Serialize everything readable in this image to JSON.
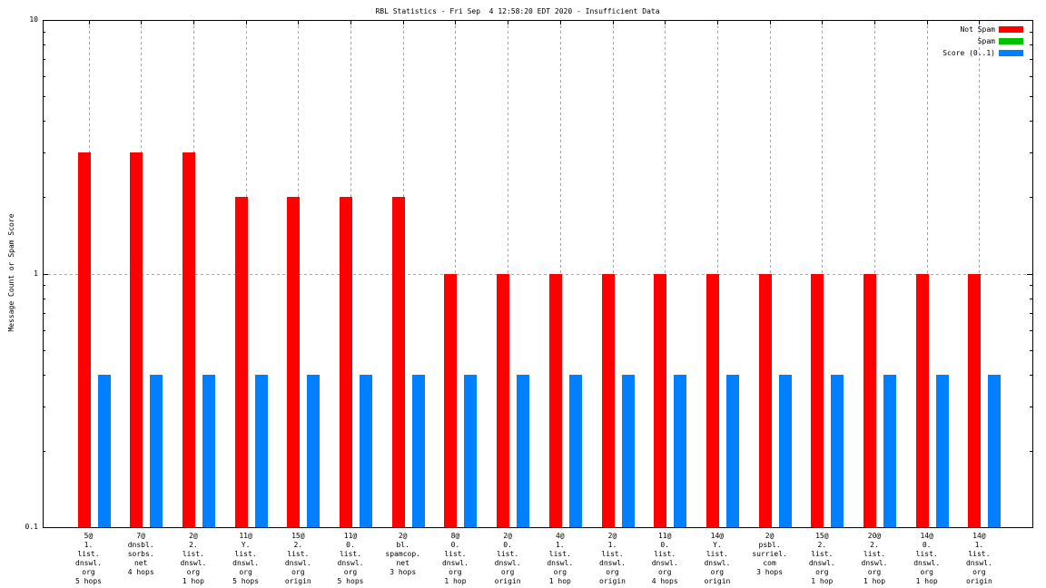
{
  "chart_data": {
    "type": "bar",
    "title": "RBL Statistics - Fri Sep  4 12:58:20 EDT 2020 - Insufficient Data",
    "ylabel": "Message Count or Spam Score",
    "xlabel": "",
    "yscale": "log",
    "ylim": [
      0.1,
      10
    ],
    "yticks": [
      {
        "value": 0.1,
        "label": "0.1"
      },
      {
        "value": 1,
        "label": "1"
      },
      {
        "value": 10,
        "label": "10"
      }
    ],
    "grid": {
      "color": "#a8a8a8",
      "horizontal_dotted_at": 1,
      "vertical_dotted_per_category": true
    },
    "legend_position": "top-right-inside",
    "categories": [
      [
        "5@",
        "1.",
        "list.",
        "dnswl.",
        "org",
        "5 hops"
      ],
      [
        "7@",
        "dnsbl.",
        "sorbs.",
        "net",
        "4 hops"
      ],
      [
        "2@",
        "2.",
        "list.",
        "dnswl.",
        "org",
        "1 hop"
      ],
      [
        "11@",
        "Y.",
        "list.",
        "dnswl.",
        "org",
        "5 hops"
      ],
      [
        "15@",
        "2.",
        "list.",
        "dnswl.",
        "org",
        "origin"
      ],
      [
        "11@",
        "0.",
        "list.",
        "dnswl.",
        "org",
        "5 hops"
      ],
      [
        "2@",
        "bl.",
        "spamcop.",
        "net",
        "3 hops"
      ],
      [
        "8@",
        "0.",
        "list.",
        "dnswl.",
        "org",
        "1 hop"
      ],
      [
        "2@",
        "0.",
        "list.",
        "dnswl.",
        "org",
        "origin"
      ],
      [
        "4@",
        "1.",
        "list.",
        "dnswl.",
        "org",
        "1 hop"
      ],
      [
        "2@",
        "1.",
        "list.",
        "dnswl.",
        "org",
        "origin"
      ],
      [
        "11@",
        "0.",
        "list.",
        "dnswl.",
        "org",
        "4 hops"
      ],
      [
        "14@",
        "Y.",
        "list.",
        "dnswl.",
        "org",
        "origin"
      ],
      [
        "2@",
        "psbl.",
        "surriel.",
        "com",
        "3 hops"
      ],
      [
        "15@",
        "2.",
        "list.",
        "dnswl.",
        "org",
        "1 hop"
      ],
      [
        "20@",
        "2.",
        "list.",
        "dnswl.",
        "org",
        "1 hop"
      ],
      [
        "14@",
        "0.",
        "list.",
        "dnswl.",
        "org",
        "1 hop"
      ],
      [
        "14@",
        "1.",
        "list.",
        "dnswl.",
        "org",
        "origin"
      ]
    ],
    "series": [
      {
        "name": "Not Spam",
        "color": "#ff0000",
        "values": [
          3,
          3,
          3,
          2,
          2,
          2,
          2,
          1,
          1,
          1,
          1,
          1,
          1,
          1,
          1,
          1,
          1,
          1
        ]
      },
      {
        "name": "Spam",
        "color": "#00c000",
        "values": [
          0,
          0,
          0,
          0,
          0,
          0,
          0,
          0,
          0,
          0,
          0,
          0,
          0,
          0,
          0,
          0,
          0,
          0
        ]
      },
      {
        "name": "Score (0..1)",
        "color": "#0080ff",
        "values": [
          0.4,
          0.4,
          0.4,
          0.4,
          0.4,
          0.4,
          0.4,
          0.4,
          0.4,
          0.4,
          0.4,
          0.4,
          0.4,
          0.4,
          0.4,
          0.4,
          0.4,
          0.4
        ]
      }
    ]
  }
}
